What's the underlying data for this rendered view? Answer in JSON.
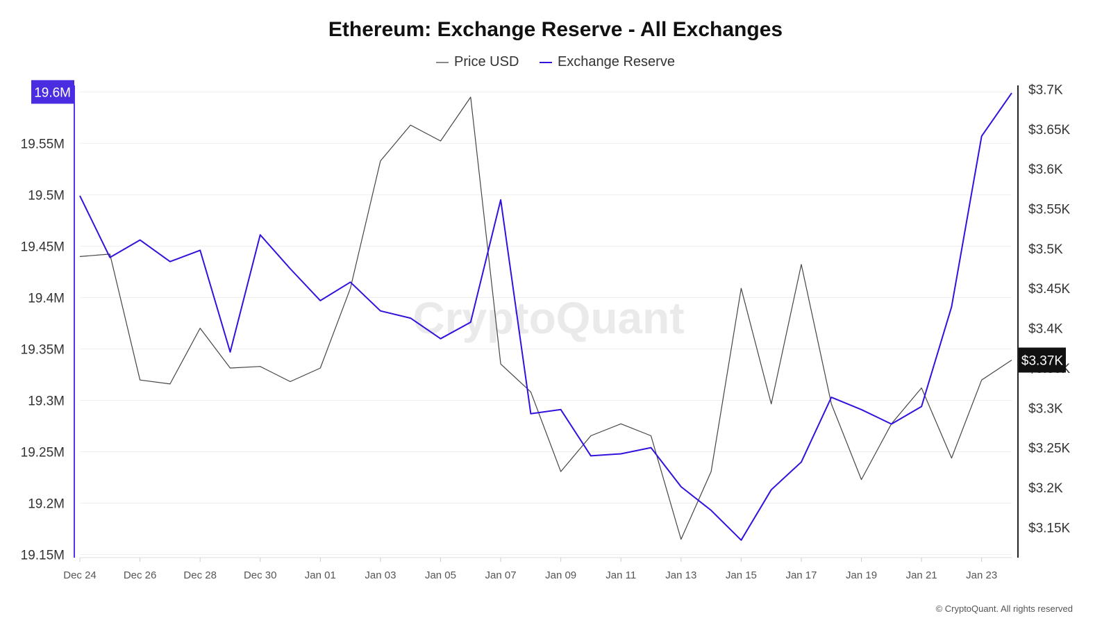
{
  "chart_data": {
    "type": "line",
    "title": "Ethereum: Exchange Reserve - All Exchanges",
    "x_tick_labels": [
      "Dec 24",
      "Dec 26",
      "Dec 28",
      "Dec 30",
      "Jan 01",
      "Jan 03",
      "Jan 05",
      "Jan 07",
      "Jan 09",
      "Jan 11",
      "Jan 13",
      "Jan 15",
      "Jan 17",
      "Jan 19",
      "Jan 21",
      "Jan 23"
    ],
    "x_dates": [
      "Dec 24",
      "Dec 25",
      "Dec 26",
      "Dec 27",
      "Dec 28",
      "Dec 29",
      "Dec 30",
      "Dec 31",
      "Jan 01",
      "Jan 02",
      "Jan 03",
      "Jan 04",
      "Jan 05",
      "Jan 06",
      "Jan 07",
      "Jan 08",
      "Jan 09",
      "Jan 10",
      "Jan 11",
      "Jan 12",
      "Jan 13",
      "Jan 14",
      "Jan 15",
      "Jan 16",
      "Jan 17",
      "Jan 18",
      "Jan 19",
      "Jan 20",
      "Jan 21",
      "Jan 22",
      "Jan 23",
      "Jan 24"
    ],
    "left_axis": {
      "ticks": [
        19150000,
        19200000,
        19250000,
        19300000,
        19350000,
        19400000,
        19450000,
        19500000,
        19550000,
        19600000
      ],
      "tick_labels": [
        "19.15M",
        "19.2M",
        "19.25M",
        "19.3M",
        "19.35M",
        "19.4M",
        "19.45M",
        "19.5M",
        "19.55M",
        "19.6M"
      ],
      "range": [
        19147000,
        19605000
      ],
      "highlight_label": "19.6M"
    },
    "right_axis": {
      "ticks": [
        3150,
        3200,
        3250,
        3300,
        3350,
        3400,
        3450,
        3500,
        3550,
        3600,
        3650,
        3700
      ],
      "tick_labels": [
        "$3.15K",
        "$3.2K",
        "$3.25K",
        "$3.3K",
        "$3.35K",
        "$3.4K",
        "$3.45K",
        "$3.5K",
        "$3.55K",
        "$3.6K",
        "$3.65K",
        "$3.7K"
      ],
      "range": [
        3112,
        3703
      ],
      "current_label": "$3.37K"
    },
    "series": [
      {
        "name": "Price USD",
        "axis": "right",
        "color": "#444444",
        "values": [
          3490,
          3493,
          3335,
          3330,
          3400,
          3350,
          3352,
          3333,
          3350,
          3450,
          3610,
          3655,
          3635,
          3690,
          3355,
          3320,
          3220,
          3265,
          3280,
          3265,
          3135,
          3220,
          3450,
          3305,
          3480,
          3305,
          3210,
          3280,
          3325,
          3237,
          3335,
          3360
        ]
      },
      {
        "name": "Exchange Reserve",
        "axis": "left",
        "color": "#3311dd",
        "values": [
          19499000,
          19439000,
          19456000,
          19435000,
          19446000,
          19347000,
          19461000,
          19428000,
          19397000,
          19415000,
          19387000,
          19380000,
          19360000,
          19376000,
          19495000,
          19287000,
          19291000,
          19246000,
          19248000,
          19254000,
          19216000,
          19193000,
          19164000,
          19213000,
          19240000,
          19303000,
          19291000,
          19277000,
          19294000,
          19391000,
          19557000,
          19599000
        ]
      }
    ],
    "legend": [
      "Price USD",
      "Exchange Reserve"
    ],
    "legend_position": "top-center",
    "grid": true,
    "watermark": "CryptoQuant",
    "copyright": "© CryptoQuant. All rights reserved",
    "colors": {
      "left_axis": "#5533ee",
      "left_highlight_bg": "#4a2de0",
      "right_axis": "#222222",
      "current_bg": "#111111"
    }
  }
}
